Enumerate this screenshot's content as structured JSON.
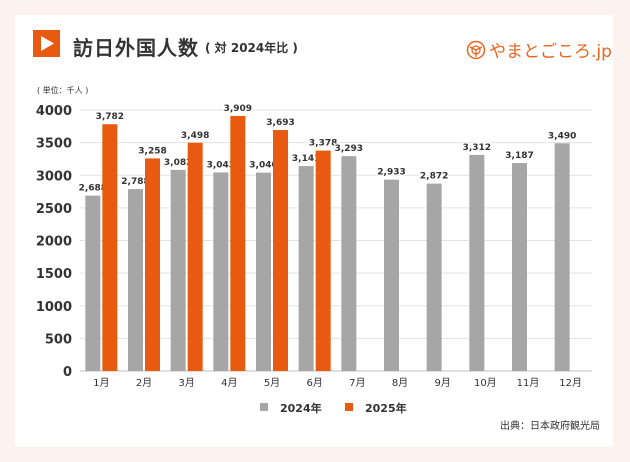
{
  "header": {
    "title": "訪日外国人数",
    "subtitle": "( 対 2024年比 )",
    "logo_text": "やまとごころ.jp",
    "icon": "play-triangle-icon"
  },
  "unit_label": "( 単位：千人 )",
  "source": "出典：日本政府観光局",
  "colors": {
    "series_2024": "#a6a6a6",
    "series_2025": "#e85a10",
    "accent": "#e85a10",
    "background": "#fdf3ee"
  },
  "chart_data": {
    "type": "bar",
    "categories": [
      "1月",
      "2月",
      "3月",
      "4月",
      "5月",
      "6月",
      "7月",
      "8月",
      "9月",
      "10月",
      "11月",
      "12月"
    ],
    "series": [
      {
        "name": "2024年",
        "values": [
          2688,
          2788,
          3082,
          3043,
          3040,
          3141,
          3293,
          2933,
          2872,
          3312,
          3187,
          3490
        ],
        "labels": [
          "2,688",
          "2,788",
          "3,082",
          "3,043",
          "3,040",
          "3,141",
          "3,293",
          "2,933",
          "2,872",
          "3,312",
          "3,187",
          "3,490"
        ]
      },
      {
        "name": "2025年",
        "values": [
          3782,
          3258,
          3498,
          3909,
          3693,
          3378,
          null,
          null,
          null,
          null,
          null,
          null
        ],
        "labels": [
          "3,782",
          "3,258",
          "3,498",
          "3,909",
          "3,693",
          "3,378"
        ]
      }
    ],
    "yticks": [
      0,
      500,
      1000,
      1500,
      2000,
      2500,
      3000,
      3500,
      4000
    ],
    "ylim": [
      0,
      4000
    ],
    "grid": true,
    "legend": "bottom"
  }
}
